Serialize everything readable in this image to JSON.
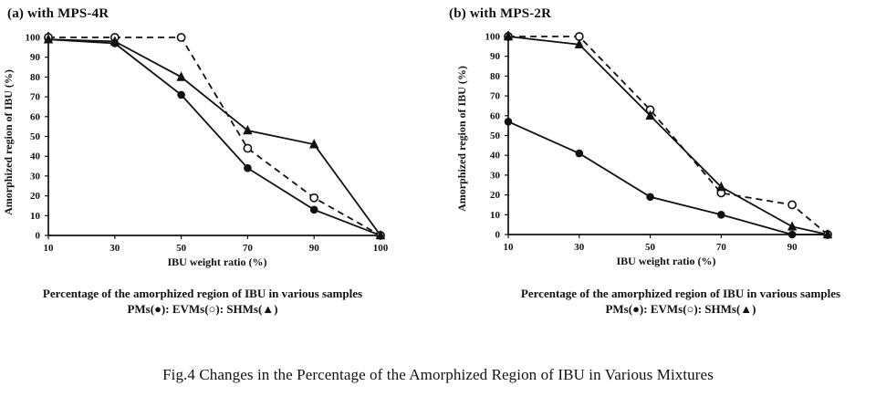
{
  "figure_title": "Fig.4 Changes in the Percentage of the Amorphized Region of IBU in Various Mixtures",
  "colors": {
    "ink": "#111111",
    "background": "#ffffff"
  },
  "chart_data": [
    {
      "id": "a",
      "type": "line",
      "title": "(a) with MPS-4R",
      "xlabel": "IBU weight ratio (%)",
      "ylabel": "Amorphized region of IBU (%)",
      "grid": false,
      "x_axis": {
        "type": "category",
        "values": [
          10,
          30,
          50,
          70,
          90,
          100
        ],
        "tick_labels": [
          "10",
          "30",
          "50",
          "70",
          "90",
          "100"
        ]
      },
      "y_axis": {
        "min": 0,
        "max": 100,
        "ticks": [
          0,
          10,
          20,
          30,
          40,
          50,
          60,
          70,
          80,
          90,
          100
        ]
      },
      "series": [
        {
          "name": "PMs",
          "marker": "filled-circle",
          "line_style": "solid",
          "values": [
            99,
            97,
            71,
            34,
            13,
            0
          ]
        },
        {
          "name": "EVMs",
          "marker": "open-circle",
          "line_style": "dashed",
          "values": [
            100,
            100,
            100,
            44,
            19,
            0
          ]
        },
        {
          "name": "SHMs",
          "marker": "filled-triangle",
          "line_style": "solid",
          "values": [
            99,
            98,
            80,
            53,
            46,
            0
          ]
        }
      ],
      "caption": {
        "line1": "Percentage of the amorphized region of IBU in various samples",
        "line2": "PMs(●): EVMs(○): SHMs(▲)"
      }
    },
    {
      "id": "b",
      "type": "line",
      "title": "(b) with MPS-2R",
      "xlabel": "IBU weight ratio (%)",
      "ylabel": "Amorphized region of IBU (%)",
      "grid": false,
      "x_axis": {
        "type": "linear",
        "min": 10,
        "max": 100,
        "values": [
          10,
          30,
          50,
          70,
          90,
          100
        ],
        "tick_values": [
          10,
          30,
          50,
          70,
          90
        ],
        "tick_labels": [
          "10",
          "30",
          "50",
          "70",
          "90"
        ]
      },
      "y_axis": {
        "min": 0,
        "max": 100,
        "ticks": [
          0,
          10,
          20,
          30,
          40,
          50,
          60,
          70,
          80,
          90,
          100
        ]
      },
      "series": [
        {
          "name": "PMs",
          "marker": "filled-circle",
          "line_style": "solid",
          "values": [
            57,
            41,
            19,
            10,
            0,
            0
          ]
        },
        {
          "name": "EVMs",
          "marker": "open-circle",
          "line_style": "dashed",
          "values": [
            100,
            100,
            63,
            21,
            15,
            0
          ]
        },
        {
          "name": "SHMs",
          "marker": "filled-triangle",
          "line_style": "solid",
          "values": [
            100,
            96,
            60,
            24,
            4,
            0
          ]
        }
      ],
      "caption": {
        "line1": "Percentage of the amorphized region of IBU in various samples",
        "line2": "PMs(●): EVMs(○): SHMs(▲)"
      }
    }
  ]
}
